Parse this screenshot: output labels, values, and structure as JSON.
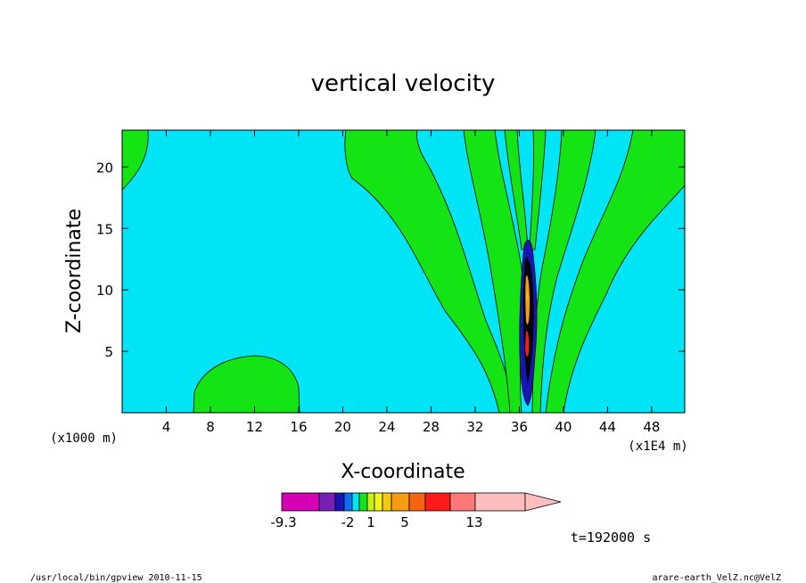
{
  "chart_data": {
    "type": "heatmap",
    "title": "vertical velocity",
    "xlabel": "X-coordinate",
    "ylabel": "Z-coordinate",
    "x_unit_label": "(x1E4 m)",
    "z_unit_label": "(x1000 m)",
    "xlim": [
      0,
      51
    ],
    "ylim": [
      0,
      23
    ],
    "x_ticks": [
      4,
      8,
      12,
      16,
      20,
      24,
      28,
      32,
      36,
      40,
      44,
      48
    ],
    "y_ticks": [
      5,
      10,
      15,
      20
    ],
    "time_label": "t=192000 s",
    "colorbar": {
      "orientation": "horizontal",
      "colors": [
        "#d300b4",
        "#7a1fb5",
        "#1a14b4",
        "#0a6ff0",
        "#00e5f5",
        "#14e314",
        "#c8f014",
        "#f5f514",
        "#f5c814",
        "#f59c14",
        "#f56414",
        "#ff1a1a",
        "#ff7878",
        "#ffbebe"
      ],
      "tick_labels": [
        "-9.3",
        "-2",
        "1",
        "5",
        "13"
      ]
    },
    "fields": {
      "background": "#00e5f5",
      "positive": "#14e314",
      "strong": [
        "#f59c14",
        "#ff1a1a",
        "#1a14b4"
      ]
    }
  },
  "footer": {
    "left": "/usr/local/bin/gpview   2010-11-15",
    "right": "arare-earth_VelZ.nc@VelZ"
  }
}
